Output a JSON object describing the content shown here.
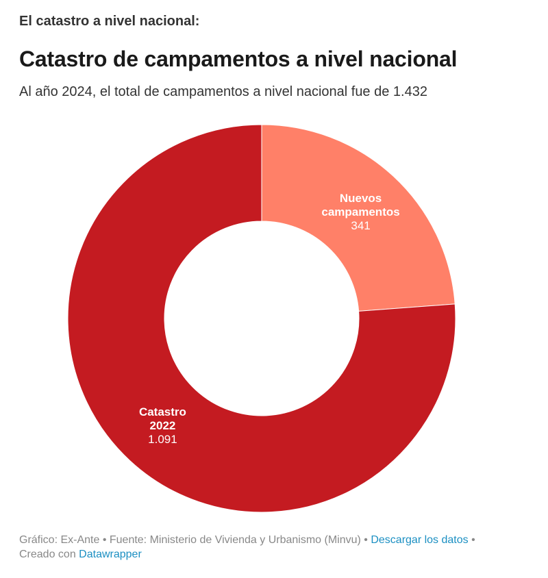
{
  "header": {
    "section_heading": "El catastro a nivel nacional:"
  },
  "chart_data": {
    "type": "pie",
    "title": "Catastro de campamentos a nivel nacional",
    "subtitle": "Al año 2024, el total de campamentos a nivel nacional fue de 1.432",
    "slices": [
      {
        "label_lines": [
          "Nuevos",
          "campamentos"
        ],
        "value": 341,
        "value_label": "341",
        "color": "#ff8068"
      },
      {
        "label_lines": [
          "Catastro",
          "2022"
        ],
        "value": 1091,
        "value_label": "1.091",
        "color": "#c41b21"
      }
    ],
    "total": 1432,
    "donut": true
  },
  "footer": {
    "source_text": "Gráfico: Ex-Ante • Fuente: Ministerio de Vivienda y Urbanismo (Minvu) •",
    "download_link": "Descargar los datos",
    "separator": "•",
    "created_with": "Creado con",
    "datawrapper_link": "Datawrapper"
  }
}
